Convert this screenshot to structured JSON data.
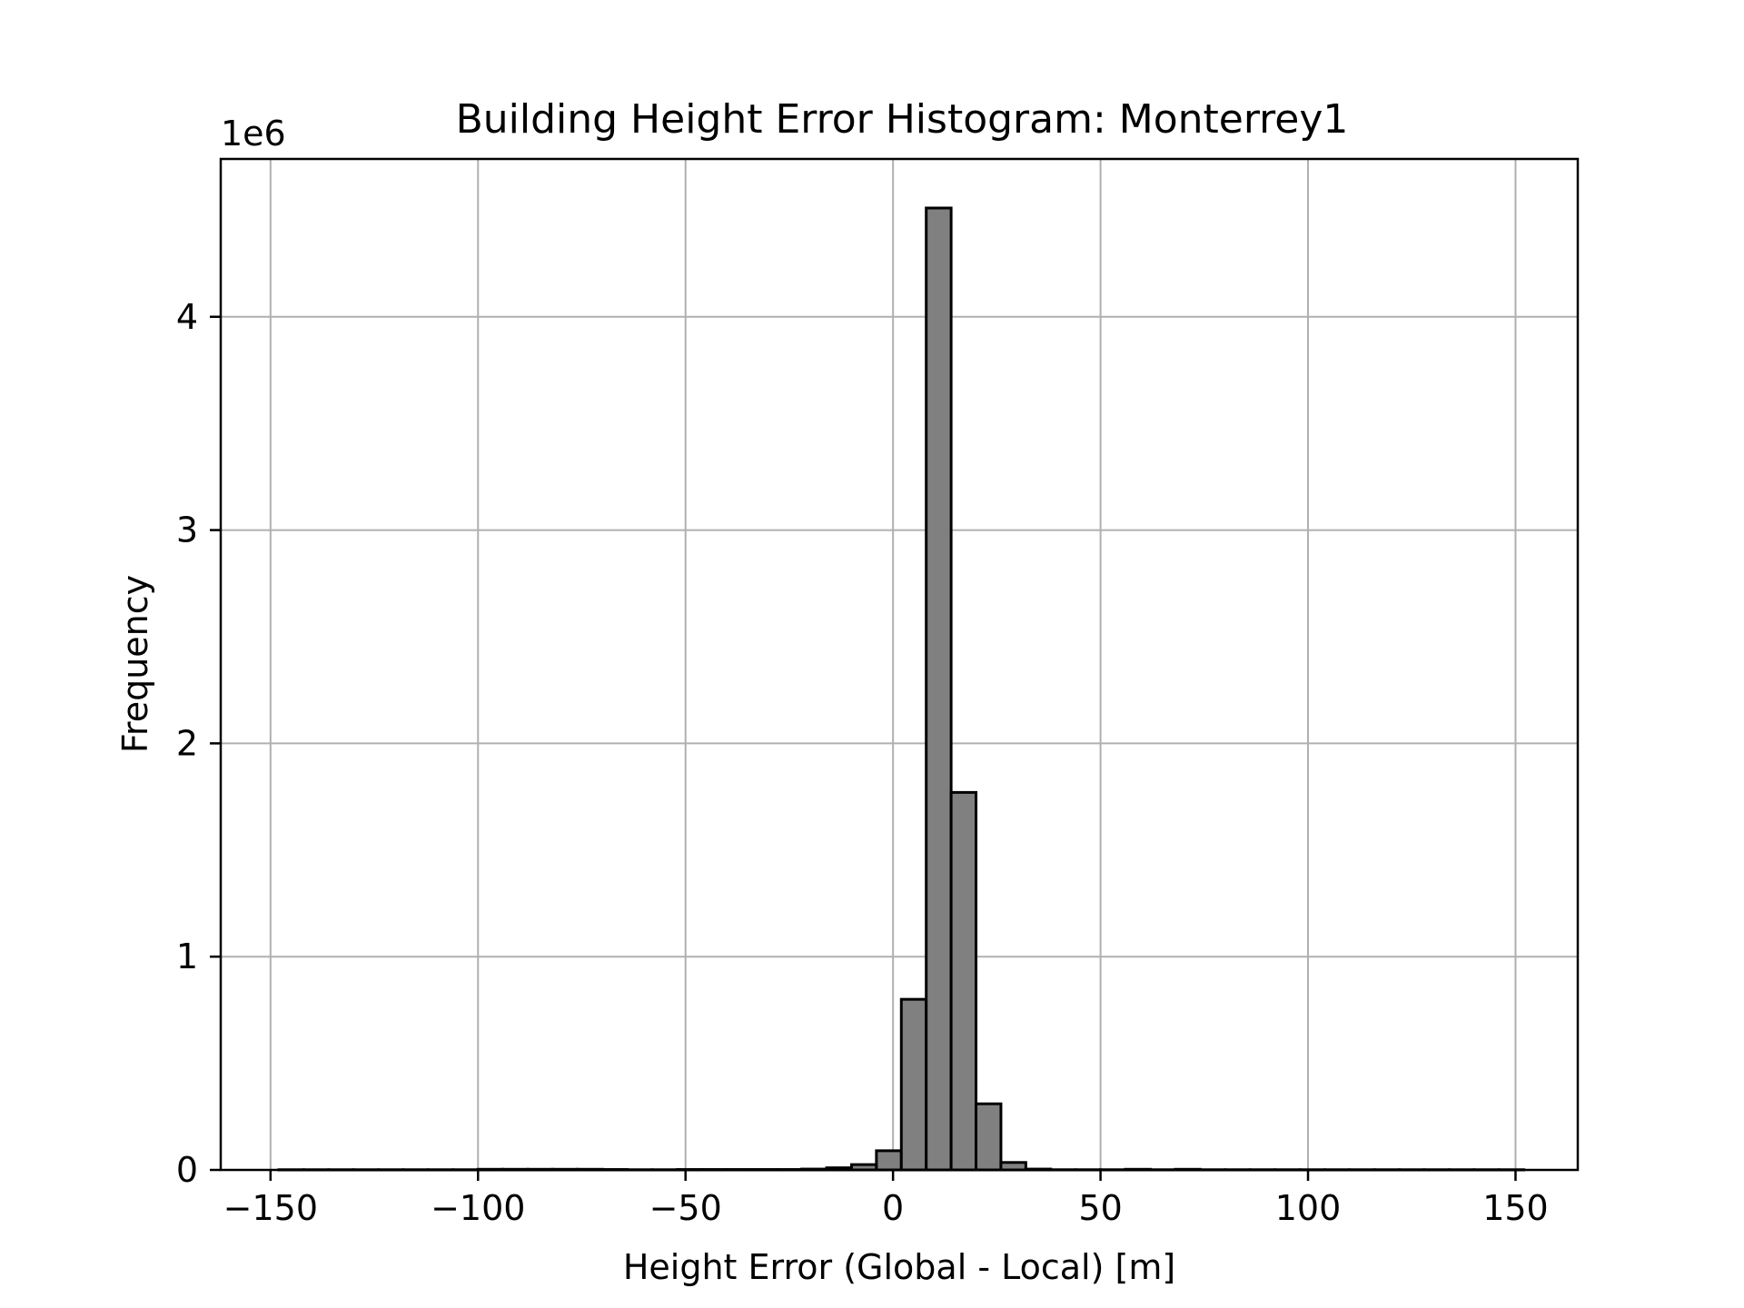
{
  "chart_data": {
    "type": "bar",
    "title": "Building Height Error Histogram: Monterrey1",
    "xlabel": "Height Error (Global - Local) [m]",
    "ylabel": "Frequency",
    "y_offset_label": "1e6",
    "xlim": [
      -162,
      165
    ],
    "ylim": [
      0,
      4.74
    ],
    "xticks": [
      -150,
      -100,
      -50,
      0,
      50,
      100,
      150
    ],
    "xtick_labels": [
      "−150",
      "−100",
      "−50",
      "0",
      "50",
      "100",
      "150"
    ],
    "yticks": [
      0,
      1,
      2,
      3,
      4
    ],
    "ytick_labels": [
      "0",
      "1",
      "2",
      "3",
      "4"
    ],
    "grid": true,
    "bin_width": 6,
    "bin_start": -148,
    "values": [
      0.001,
      0.001,
      0.001,
      0.001,
      0.001,
      0.001,
      0.001,
      0.001,
      0.003,
      0.003,
      0.003,
      0.003,
      0.003,
      0.002,
      0.001,
      0.001,
      0.002,
      0.002,
      0.002,
      0.002,
      0.002,
      0.004,
      0.01,
      0.025,
      0.09,
      0.8,
      4.51,
      1.77,
      0.31,
      0.035,
      0.004,
      0.001,
      0.001,
      0.001,
      0.003,
      0.001,
      0.003,
      0.001,
      0.001,
      0.001,
      0.001,
      0.001,
      0.001,
      0.001,
      0.001,
      0.001,
      0.001,
      0.001,
      0.001,
      0.001
    ],
    "bar_color": "#808080",
    "edge_color": "#000000",
    "grid_color": "#b0b0b0"
  }
}
